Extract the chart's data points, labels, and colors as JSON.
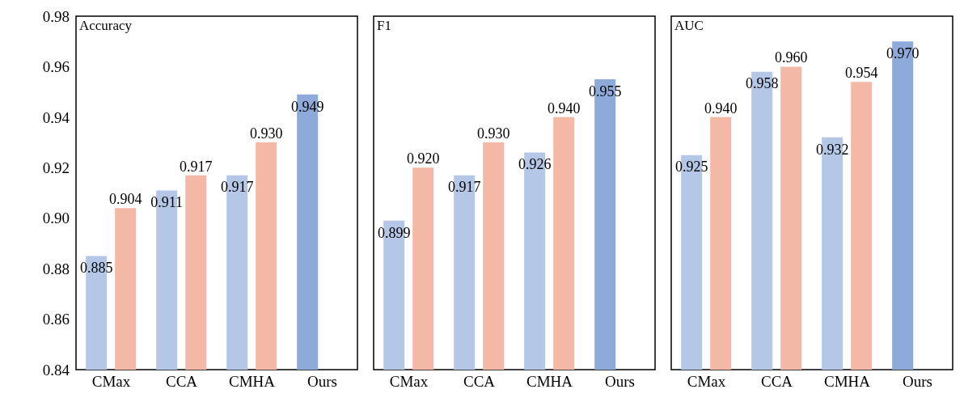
{
  "chart_data": [
    {
      "type": "bar",
      "title": "Accuracy",
      "categories": [
        "CMax",
        "CCA",
        "CMHA",
        "Ours"
      ],
      "series": [
        {
          "color": "#b4c7e7",
          "colors": [
            "#b4c7e7",
            "#b4c7e7",
            "#b4c7e7",
            "#8eaadb"
          ],
          "values": [
            0.885,
            0.911,
            0.917,
            0.949
          ],
          "value_labels": [
            "0.885",
            "0.911",
            "0.917",
            "0.949"
          ]
        },
        {
          "color": "#f4b9a6",
          "values": [
            0.904,
            0.917,
            0.93,
            null
          ],
          "value_labels": [
            "0.904",
            "0.917",
            "0.930",
            null
          ]
        }
      ],
      "ylim": [
        0.84,
        0.98
      ],
      "yticks": [
        {
          "value": 0.84,
          "label": "0.84"
        },
        {
          "value": 0.86,
          "label": "0.86"
        },
        {
          "value": 0.88,
          "label": "0.88"
        },
        {
          "value": 0.9,
          "label": "0.90"
        },
        {
          "value": 0.92,
          "label": "0.92"
        },
        {
          "value": 0.94,
          "label": "0.94"
        },
        {
          "value": 0.96,
          "label": "0.96"
        },
        {
          "value": 0.98,
          "label": "0.98"
        }
      ],
      "grid": false,
      "legend": false
    },
    {
      "type": "bar",
      "title": "F1",
      "categories": [
        "CMax",
        "CCA",
        "CMHA",
        "Ours"
      ],
      "series": [
        {
          "color": "#b4c7e7",
          "colors": [
            "#b4c7e7",
            "#b4c7e7",
            "#b4c7e7",
            "#8eaadb"
          ],
          "values": [
            0.899,
            0.917,
            0.926,
            0.955
          ],
          "value_labels": [
            "0.899",
            "0.917",
            "0.926",
            "0.955"
          ]
        },
        {
          "color": "#f4b9a6",
          "values": [
            0.92,
            0.93,
            0.94,
            null
          ],
          "value_labels": [
            "0.920",
            "0.930",
            "0.940",
            null
          ]
        }
      ],
      "ylim": [
        0.84,
        0.98
      ],
      "tick_labels": "x",
      "grid": false,
      "legend": false
    },
    {
      "type": "bar",
      "title": "AUC",
      "categories": [
        "CMax",
        "CCA",
        "CMHA",
        "Ours"
      ],
      "series": [
        {
          "color": "#b4c7e7",
          "colors": [
            "#b4c7e7",
            "#b4c7e7",
            "#b4c7e7",
            "#8eaadb"
          ],
          "values": [
            0.925,
            0.958,
            0.932,
            0.97
          ],
          "value_labels": [
            "0.925",
            "0.958",
            "0.932",
            "0.970"
          ]
        },
        {
          "color": "#f4b9a6",
          "values": [
            0.94,
            0.96,
            0.954,
            null
          ],
          "value_labels": [
            "0.940",
            "0.960",
            "0.954",
            null
          ]
        }
      ],
      "ylim": [
        0.84,
        0.98
      ],
      "tick_labels": "x",
      "grid": false,
      "legend": false
    }
  ]
}
